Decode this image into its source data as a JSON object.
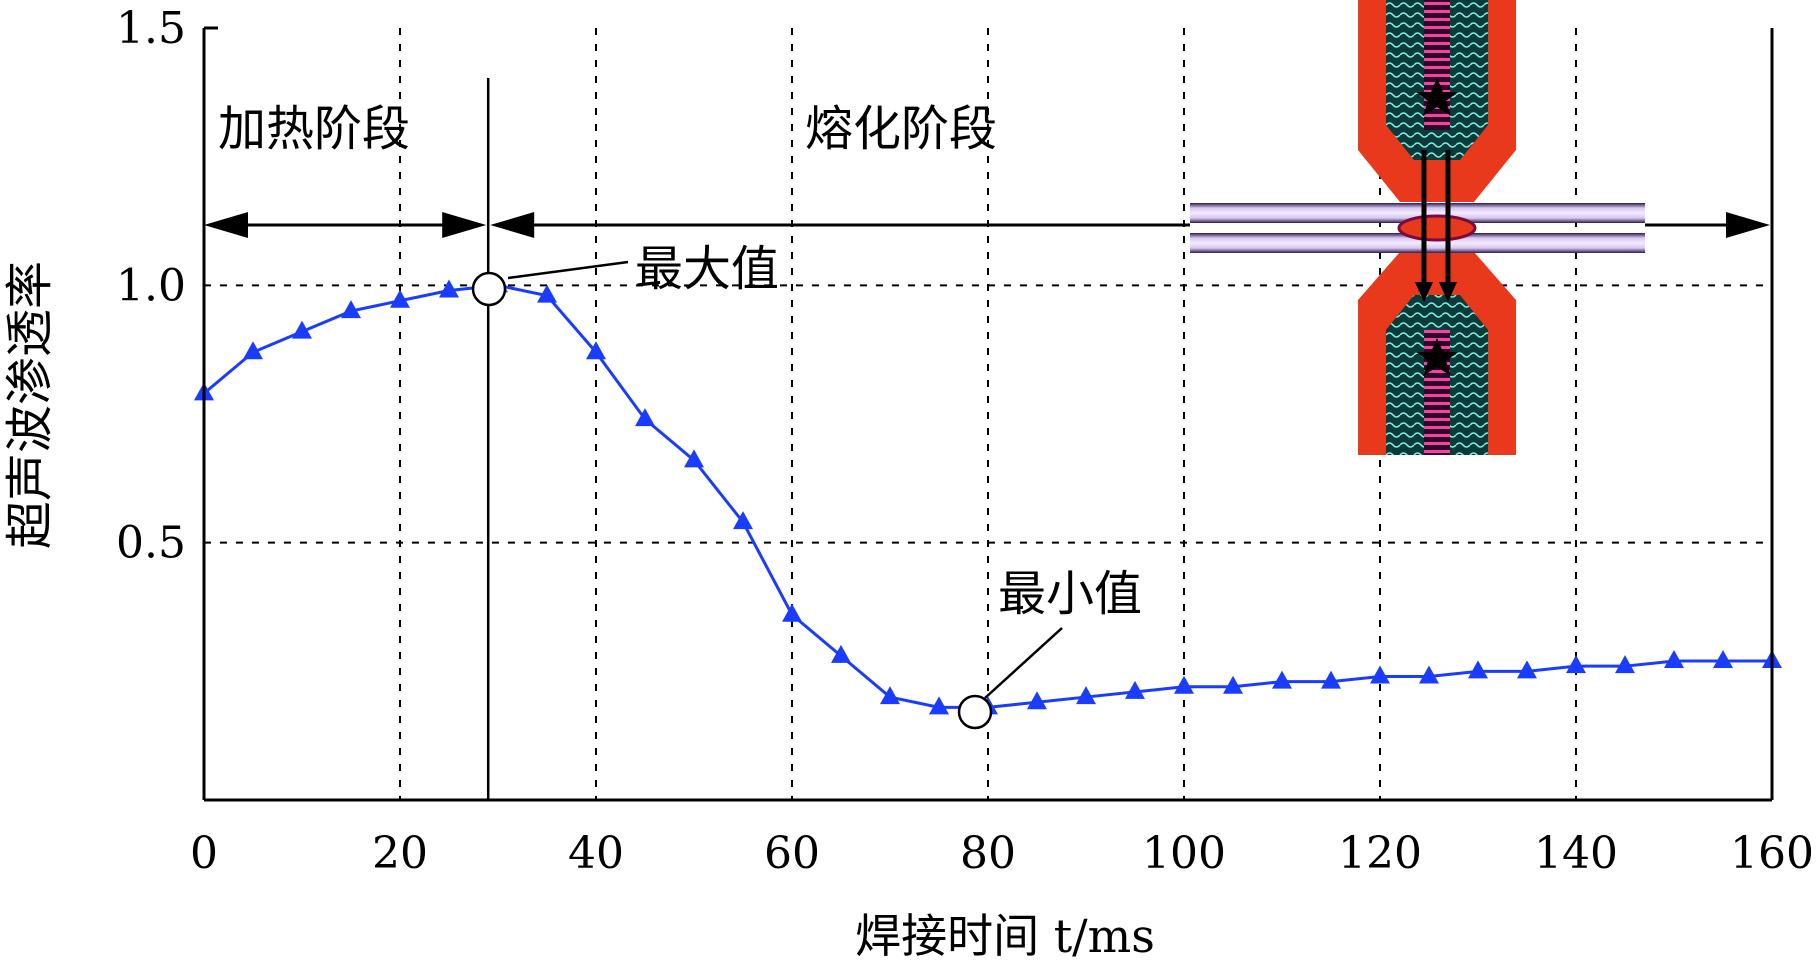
{
  "chart_data": {
    "type": "line",
    "xlabel": "焊接时间 t/ms",
    "ylabel": "超声波渗透率",
    "xlim": [
      0,
      160
    ],
    "ylim": [
      0,
      1.5
    ],
    "x_ticks": [
      "0",
      "20",
      "40",
      "60",
      "80",
      "100",
      "120",
      "140",
      "160"
    ],
    "y_ticks": [
      "0.5",
      "1.0",
      "1.5"
    ],
    "grid": true,
    "series": [
      {
        "color": "#1a3cff",
        "marker": "triangle",
        "x": [
          0,
          5,
          10,
          15,
          20,
          25,
          30,
          35,
          40,
          45,
          50,
          55,
          60,
          65,
          70,
          75,
          80,
          85,
          90,
          95,
          100,
          105,
          110,
          115,
          120,
          125,
          130,
          135,
          140,
          145,
          150,
          155,
          160
        ],
        "y": [
          0.79,
          0.87,
          0.91,
          0.95,
          0.97,
          0.99,
          1.0,
          0.98,
          0.87,
          0.74,
          0.66,
          0.54,
          0.36,
          0.28,
          0.2,
          0.18,
          0.18,
          0.19,
          0.2,
          0.21,
          0.22,
          0.22,
          0.23,
          0.23,
          0.24,
          0.24,
          0.25,
          0.25,
          0.26,
          0.26,
          0.27,
          0.27,
          0.27
        ]
      }
    ],
    "phase_boundary_x": 29,
    "phases": [
      {
        "label": "加热阶段",
        "x_start": 0,
        "x_end": 29
      },
      {
        "label": "熔化阶段",
        "x_start": 29,
        "x_end": 160
      }
    ],
    "annotations": [
      {
        "label": "最大值",
        "x": 29,
        "y": 1.0
      },
      {
        "label": "最小值",
        "x": 79,
        "y": 0.18
      }
    ],
    "inset_image": "resistance-spot-weld-electrode-diagram"
  }
}
